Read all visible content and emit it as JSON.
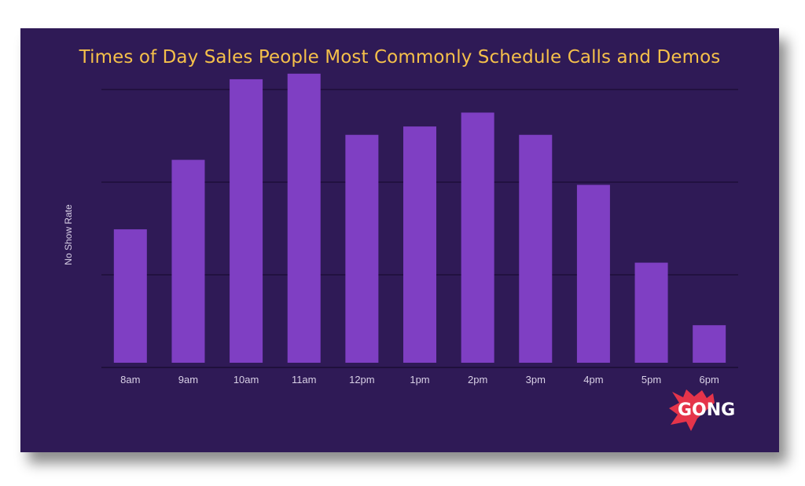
{
  "chart_data": {
    "type": "bar",
    "title": "Times of Day Sales People Most Commonly Schedule Calls and Demos",
    "xlabel": "",
    "ylabel": "No Show Rate",
    "categories": [
      "8am",
      "9am",
      "10am",
      "11am",
      "12pm",
      "1pm",
      "2pm",
      "3pm",
      "4pm",
      "5pm",
      "6pm"
    ],
    "values": [
      48,
      73,
      102,
      104,
      82,
      85,
      90,
      82,
      64,
      36,
      13.5
    ],
    "ylim": [
      0,
      100
    ],
    "grid": true,
    "colors": {
      "background": "#2f1a56",
      "bar": "#7f3fc3",
      "title": "#f5c04a",
      "grid": "#1a0c33",
      "tick_label": "#d8d0e6"
    }
  },
  "logo": {
    "text": "GONG",
    "color": "#e5344a"
  }
}
